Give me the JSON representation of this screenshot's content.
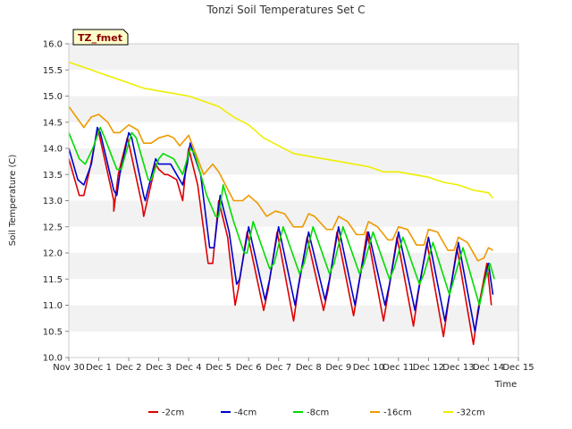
{
  "chart_data": {
    "type": "line",
    "title": "Tonzi Soil Temperatures Set C",
    "xlabel": "Time",
    "ylabel": "Soil Temperature (C)",
    "xlim": [
      0,
      15
    ],
    "ylim": [
      10.0,
      16.0
    ],
    "x_ticks": [
      {
        "value": 0,
        "label": "Nov 30"
      },
      {
        "value": 1,
        "label": "Dec 1"
      },
      {
        "value": 2,
        "label": "Dec 2"
      },
      {
        "value": 3,
        "label": "Dec 3"
      },
      {
        "value": 4,
        "label": "Dec 4"
      },
      {
        "value": 5,
        "label": "Dec 5"
      },
      {
        "value": 6,
        "label": "Dec 6"
      },
      {
        "value": 7,
        "label": "Dec 7"
      },
      {
        "value": 8,
        "label": "Dec 8"
      },
      {
        "value": 9,
        "label": "Dec 9"
      },
      {
        "value": 10,
        "label": "Dec 10"
      },
      {
        "value": 11,
        "label": "Dec 11"
      },
      {
        "value": 12,
        "label": "Dec 12"
      },
      {
        "value": 13,
        "label": "Dec 13"
      },
      {
        "value": 14,
        "label": "Dec 14"
      },
      {
        "value": 15,
        "label": "Dec 15"
      }
    ],
    "y_ticks": [
      "10.0",
      "10.5",
      "11.0",
      "11.5",
      "12.0",
      "12.5",
      "13.0",
      "13.5",
      "14.0",
      "14.5",
      "15.0",
      "15.5",
      "16.0"
    ],
    "grid": "horizontal bands",
    "legend_position": "bottom",
    "annotation": "TZ_fmet",
    "series": [
      {
        "name": "-2cm",
        "color": "#dd0000",
        "x": [
          0.0,
          0.35,
          0.5,
          0.7,
          0.95,
          1.0,
          1.5,
          1.5,
          1.65,
          1.95,
          2.0,
          2.45,
          2.5,
          2.9,
          3.0,
          3.2,
          3.3,
          3.6,
          3.8,
          3.9,
          4.0,
          4.3,
          4.65,
          4.8,
          5.0,
          5.3,
          5.55,
          5.65,
          5.95,
          6.5,
          6.65,
          6.95,
          7.5,
          7.65,
          7.95,
          8.5,
          8.65,
          8.95,
          9.5,
          9.65,
          9.95,
          10.5,
          10.65,
          10.95,
          11.5,
          11.65,
          11.95,
          12.5,
          12.65,
          12.95,
          13.5,
          13.65,
          13.95,
          14.1
        ],
        "y": [
          13.8,
          13.1,
          13.1,
          13.6,
          14.35,
          14.3,
          13.0,
          12.8,
          13.5,
          14.2,
          14.1,
          12.9,
          12.7,
          13.7,
          13.6,
          13.5,
          13.5,
          13.4,
          13.0,
          13.6,
          14.0,
          13.3,
          11.8,
          11.8,
          13.0,
          12.3,
          11.0,
          11.3,
          12.4,
          10.9,
          11.3,
          12.4,
          10.7,
          11.3,
          12.3,
          10.9,
          11.3,
          12.4,
          10.8,
          11.3,
          12.4,
          10.7,
          11.2,
          12.3,
          10.6,
          11.2,
          12.2,
          10.4,
          11.0,
          12.1,
          10.25,
          10.9,
          11.8,
          11.0
        ]
      },
      {
        "name": "-4cm",
        "color": "#0000cc",
        "x": [
          0.0,
          0.3,
          0.5,
          0.75,
          0.95,
          1.05,
          1.5,
          1.6,
          1.7,
          2.0,
          2.1,
          2.5,
          2.55,
          2.9,
          3.0,
          3.2,
          3.4,
          3.6,
          3.8,
          3.95,
          4.05,
          4.4,
          4.7,
          4.85,
          5.05,
          5.35,
          5.6,
          5.7,
          6.0,
          6.55,
          6.7,
          7.0,
          7.55,
          7.7,
          8.0,
          8.55,
          8.7,
          9.0,
          9.55,
          9.7,
          10.0,
          10.55,
          10.7,
          11.0,
          11.55,
          11.7,
          12.0,
          12.55,
          12.7,
          13.0,
          13.55,
          13.7,
          14.0,
          14.15
        ],
        "y": [
          14.0,
          13.4,
          13.3,
          13.7,
          14.4,
          14.3,
          13.2,
          13.1,
          13.5,
          14.3,
          14.2,
          13.1,
          13.0,
          13.8,
          13.7,
          13.7,
          13.7,
          13.5,
          13.3,
          13.7,
          14.1,
          13.5,
          12.1,
          12.1,
          13.1,
          12.4,
          11.4,
          11.5,
          12.5,
          11.1,
          11.5,
          12.5,
          11.0,
          11.5,
          12.4,
          11.1,
          11.5,
          12.5,
          11.0,
          11.5,
          12.4,
          11.0,
          11.4,
          12.4,
          10.9,
          11.4,
          12.3,
          10.7,
          11.2,
          12.2,
          10.5,
          11.0,
          11.8,
          11.2
        ]
      },
      {
        "name": "-8cm",
        "color": "#00dd00",
        "x": [
          0.0,
          0.35,
          0.55,
          0.8,
          1.05,
          1.2,
          1.6,
          1.75,
          1.85,
          2.1,
          2.25,
          2.65,
          2.75,
          3.0,
          3.15,
          3.5,
          3.8,
          4.05,
          4.2,
          4.6,
          4.9,
          5.0,
          5.15,
          5.5,
          5.85,
          5.95,
          6.15,
          6.7,
          6.85,
          7.15,
          7.7,
          7.85,
          8.15,
          8.7,
          8.85,
          9.15,
          9.7,
          9.85,
          10.15,
          10.7,
          10.85,
          11.15,
          11.7,
          11.85,
          12.15,
          12.7,
          12.85,
          13.15,
          13.7,
          13.85,
          14.05,
          14.2
        ],
        "y": [
          14.3,
          13.8,
          13.7,
          14.0,
          14.4,
          14.2,
          13.6,
          13.6,
          13.8,
          14.3,
          14.2,
          13.4,
          13.4,
          13.8,
          13.9,
          13.8,
          13.5,
          14.0,
          13.9,
          13.1,
          12.7,
          12.7,
          13.3,
          12.6,
          12.0,
          12.0,
          12.6,
          11.7,
          11.8,
          12.5,
          11.6,
          11.8,
          12.5,
          11.6,
          11.8,
          12.5,
          11.6,
          11.8,
          12.4,
          11.5,
          11.7,
          12.3,
          11.4,
          11.6,
          12.2,
          11.2,
          11.5,
          12.1,
          11.0,
          11.4,
          11.8,
          11.5
        ]
      },
      {
        "name": "-16cm",
        "color": "#ee9900",
        "x": [
          0.0,
          0.25,
          0.5,
          0.75,
          1.0,
          1.3,
          1.5,
          1.7,
          2.0,
          2.3,
          2.5,
          2.75,
          3.0,
          3.3,
          3.5,
          3.7,
          4.0,
          4.3,
          4.5,
          4.8,
          5.0,
          5.5,
          5.8,
          6.0,
          6.3,
          6.6,
          6.9,
          7.2,
          7.5,
          7.8,
          8.0,
          8.2,
          8.6,
          8.8,
          9.0,
          9.3,
          9.6,
          9.85,
          10.0,
          10.3,
          10.65,
          10.8,
          11.0,
          11.3,
          11.6,
          11.85,
          12.0,
          12.3,
          12.65,
          12.85,
          13.0,
          13.3,
          13.65,
          13.85,
          14.0,
          14.15
        ],
        "y": [
          14.8,
          14.6,
          14.4,
          14.6,
          14.65,
          14.5,
          14.3,
          14.3,
          14.45,
          14.35,
          14.1,
          14.1,
          14.2,
          14.25,
          14.2,
          14.05,
          14.25,
          13.8,
          13.5,
          13.7,
          13.55,
          13.0,
          13.0,
          13.1,
          12.95,
          12.7,
          12.8,
          12.75,
          12.5,
          12.5,
          12.75,
          12.7,
          12.45,
          12.45,
          12.7,
          12.6,
          12.35,
          12.35,
          12.6,
          12.5,
          12.25,
          12.25,
          12.5,
          12.45,
          12.15,
          12.15,
          12.45,
          12.4,
          12.05,
          12.05,
          12.3,
          12.2,
          11.85,
          11.9,
          12.1,
          12.05
        ]
      },
      {
        "name": "-32cm",
        "color": "#eeee00",
        "x": [
          0.0,
          0.5,
          1.0,
          1.5,
          2.0,
          2.5,
          3.0,
          3.5,
          4.0,
          4.5,
          5.0,
          5.5,
          6.0,
          6.5,
          7.0,
          7.5,
          8.0,
          8.5,
          9.0,
          9.5,
          10.0,
          10.5,
          11.0,
          11.5,
          12.0,
          12.5,
          13.0,
          13.5,
          14.0,
          14.15
        ],
        "y": [
          15.65,
          15.55,
          15.45,
          15.35,
          15.25,
          15.15,
          15.1,
          15.05,
          15.0,
          14.9,
          14.8,
          14.6,
          14.45,
          14.2,
          14.05,
          13.9,
          13.85,
          13.8,
          13.75,
          13.7,
          13.65,
          13.55,
          13.55,
          13.5,
          13.45,
          13.35,
          13.3,
          13.2,
          13.15,
          13.05
        ]
      }
    ]
  }
}
